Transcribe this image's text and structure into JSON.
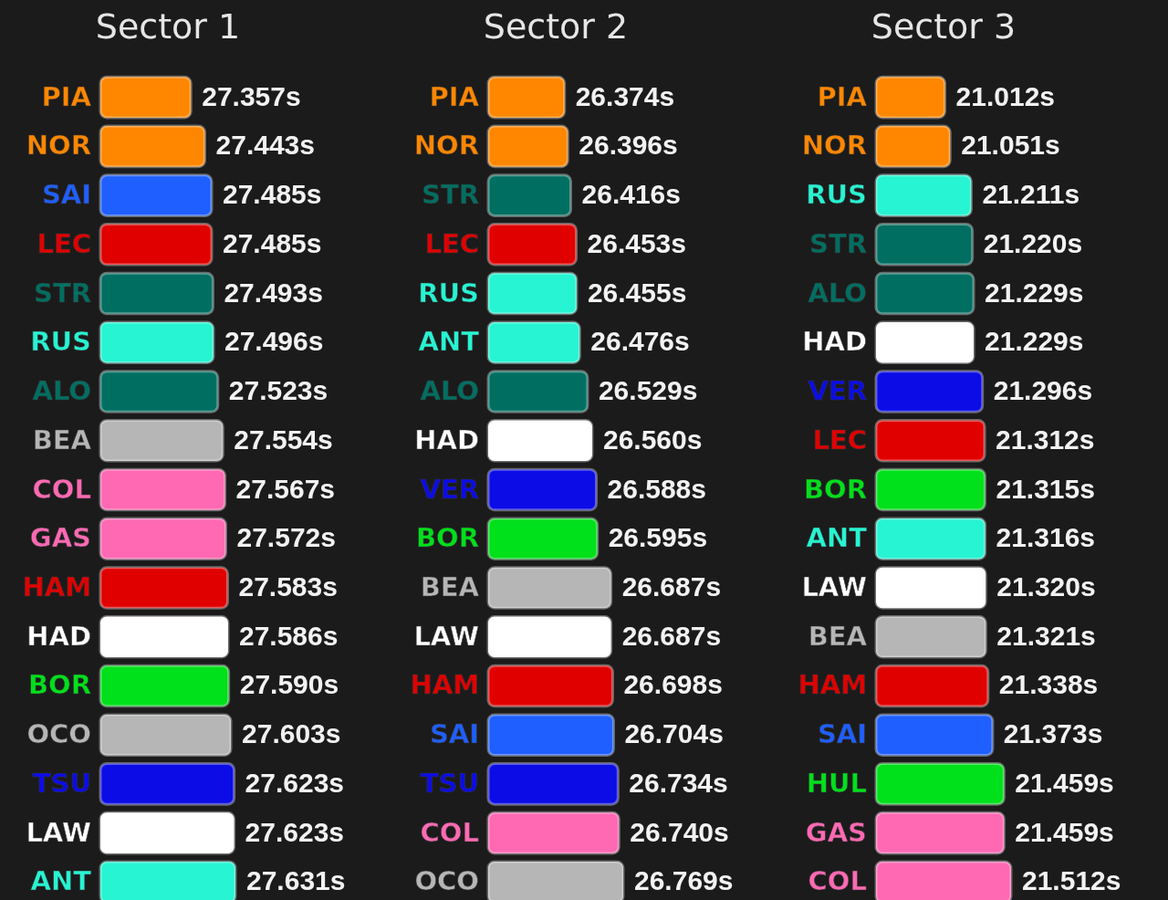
{
  "chart_data": [
    {
      "type": "bar",
      "orientation": "horizontal",
      "title": "Sector 1",
      "xlim": [
        26.8,
        27.631
      ],
      "categories": [
        "PIA",
        "NOR",
        "SAI",
        "LEC",
        "STR",
        "RUS",
        "ALO",
        "BEA",
        "COL",
        "GAS",
        "HAM",
        "HAD",
        "BOR",
        "OCO",
        "TSU",
        "LAW",
        "ANT"
      ],
      "values": [
        27.357,
        27.443,
        27.485,
        27.485,
        27.493,
        27.496,
        27.523,
        27.554,
        27.567,
        27.572,
        27.583,
        27.586,
        27.59,
        27.603,
        27.623,
        27.623,
        27.631
      ],
      "value_labels": [
        "27.357s",
        "27.443s",
        "27.485s",
        "27.485s",
        "27.493s",
        "27.496s",
        "27.523s",
        "27.554s",
        "27.567s",
        "27.572s",
        "27.583s",
        "27.586s",
        "27.590s",
        "27.603s",
        "27.623s",
        "27.623s",
        "27.631s"
      ],
      "colors": [
        "#ff8700",
        "#ff8700",
        "#1f5fff",
        "#e00000",
        "#006f62",
        "#27f4d2",
        "#006f62",
        "#b6b6b6",
        "#ff69b4",
        "#ff69b4",
        "#e00000",
        "#ffffff",
        "#00e01b",
        "#b6b6b6",
        "#0c0ce6",
        "#ffffff",
        "#27f4d2"
      ]
    },
    {
      "type": "bar",
      "orientation": "horizontal",
      "title": "Sector 2",
      "xlim": [
        25.86,
        26.769
      ],
      "categories": [
        "PIA",
        "NOR",
        "STR",
        "LEC",
        "RUS",
        "ANT",
        "ALO",
        "HAD",
        "VER",
        "BOR",
        "BEA",
        "LAW",
        "HAM",
        "SAI",
        "TSU",
        "COL",
        "OCO"
      ],
      "values": [
        26.374,
        26.396,
        26.416,
        26.453,
        26.455,
        26.476,
        26.529,
        26.56,
        26.588,
        26.595,
        26.687,
        26.687,
        26.698,
        26.704,
        26.734,
        26.74,
        26.769
      ],
      "value_labels": [
        "26.374s",
        "26.396s",
        "26.416s",
        "26.453s",
        "26.455s",
        "26.476s",
        "26.529s",
        "26.560s",
        "26.588s",
        "26.595s",
        "26.687s",
        "26.687s",
        "26.698s",
        "26.704s",
        "26.734s",
        "26.740s",
        "26.769s"
      ],
      "colors": [
        "#ff8700",
        "#ff8700",
        "#006f62",
        "#e00000",
        "#27f4d2",
        "#27f4d2",
        "#006f62",
        "#ffffff",
        "#0c0ce6",
        "#00e01b",
        "#b6b6b6",
        "#ffffff",
        "#e00000",
        "#1f5fff",
        "#0c0ce6",
        "#ff69b4",
        "#b6b6b6"
      ]
    },
    {
      "type": "bar",
      "orientation": "horizontal",
      "title": "Sector 3",
      "xlim": [
        20.49,
        21.512
      ],
      "categories": [
        "PIA",
        "NOR",
        "RUS",
        "STR",
        "ALO",
        "HAD",
        "VER",
        "LEC",
        "BOR",
        "ANT",
        "LAW",
        "BEA",
        "HAM",
        "SAI",
        "HUL",
        "GAS",
        "COL"
      ],
      "values": [
        21.012,
        21.051,
        21.211,
        21.22,
        21.229,
        21.229,
        21.296,
        21.312,
        21.315,
        21.316,
        21.32,
        21.321,
        21.338,
        21.373,
        21.459,
        21.459,
        21.512
      ],
      "value_labels": [
        "21.012s",
        "21.051s",
        "21.211s",
        "21.220s",
        "21.229s",
        "21.229s",
        "21.296s",
        "21.312s",
        "21.315s",
        "21.316s",
        "21.320s",
        "21.321s",
        "21.338s",
        "21.373s",
        "21.459s",
        "21.459s",
        "21.512s"
      ],
      "colors": [
        "#ff8700",
        "#ff8700",
        "#27f4d2",
        "#006f62",
        "#006f62",
        "#ffffff",
        "#0c0ce6",
        "#e00000",
        "#00e01b",
        "#27f4d2",
        "#ffffff",
        "#b6b6b6",
        "#e00000",
        "#1f5fff",
        "#00e01b",
        "#ff69b4",
        "#ff69b4"
      ]
    }
  ]
}
